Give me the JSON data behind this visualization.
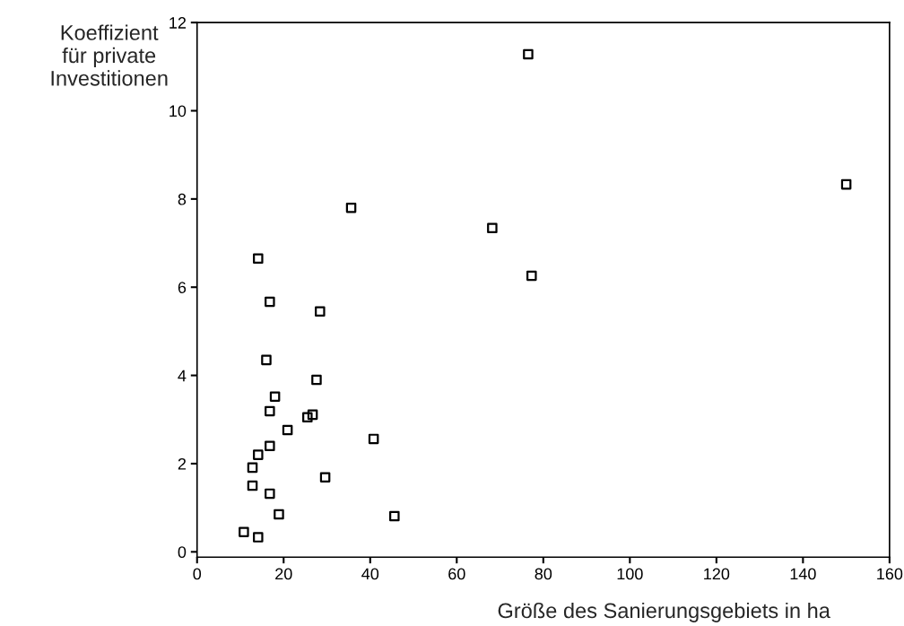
{
  "chart_data": {
    "type": "scatter",
    "xlabel": "Größe des Sanierungsgebiets in ha",
    "ylabel": "Koeffizient\nfür private\nInvestitionen",
    "marker": "square",
    "grid": false,
    "xlim": [
      0,
      160
    ],
    "xticks": [
      0,
      20,
      40,
      60,
      80,
      100,
      120,
      140,
      160
    ],
    "ylim": [
      -0.12,
      12
    ],
    "yticks": [
      0,
      2,
      4,
      6,
      8,
      10,
      12
    ],
    "series": [
      {
        "color": "#000000",
        "x": [
          76.5,
          150,
          35.6,
          68.2,
          77.3,
          14.1,
          16.8,
          28.4,
          16.0,
          27.6,
          18.0,
          16.8,
          26.7,
          25.5,
          20.9,
          40.8,
          16.8,
          14.1,
          12.8,
          29.6,
          12.8,
          16.8,
          18.9,
          45.6,
          10.8,
          14.1
        ],
        "values": [
          11.28,
          8.33,
          7.8,
          7.34,
          6.26,
          6.65,
          5.67,
          5.45,
          4.35,
          3.9,
          3.52,
          3.19,
          3.11,
          3.05,
          2.76,
          2.56,
          2.4,
          2.2,
          1.91,
          1.69,
          1.5,
          1.32,
          0.85,
          0.81,
          0.45,
          0.33
        ]
      }
    ]
  }
}
